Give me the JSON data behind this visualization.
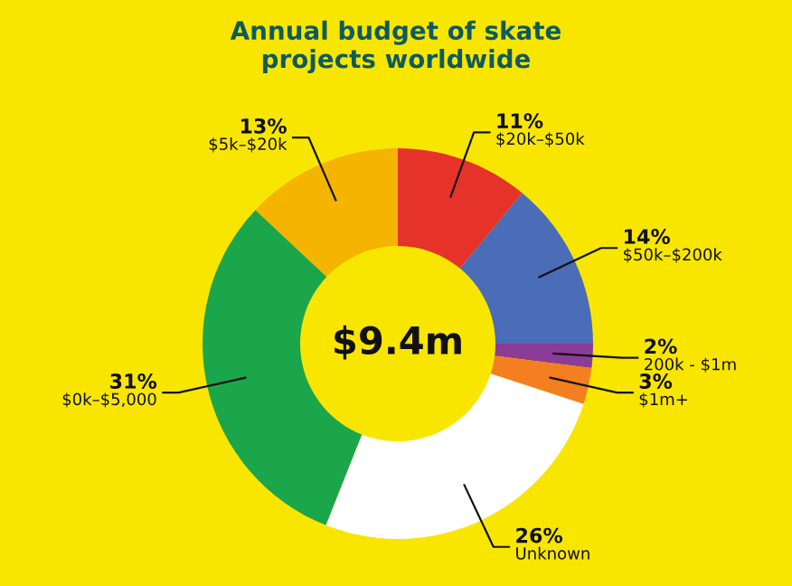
{
  "chart_data": {
    "type": "donut",
    "title": "Annual budget of skate\nprojects worldwide",
    "categories": [
      "$20k–$50k",
      "$50k–$200k",
      "200k - $1m",
      "$1m+",
      "Unknown",
      "$0k–$5,000",
      "$5k–$20k"
    ],
    "values": [
      11,
      14,
      2,
      3,
      26,
      31,
      13
    ],
    "colors": [
      "#e5332a",
      "#4b6cb7",
      "#8b3c97",
      "#f47f20",
      "#ffffff",
      "#1ba64b",
      "#f4b400"
    ],
    "value_labels": [
      "11%",
      "14%",
      "2%",
      "3%",
      "26%",
      "31%",
      "13%"
    ],
    "annotations": [
      "$9.4m"
    ]
  }
}
